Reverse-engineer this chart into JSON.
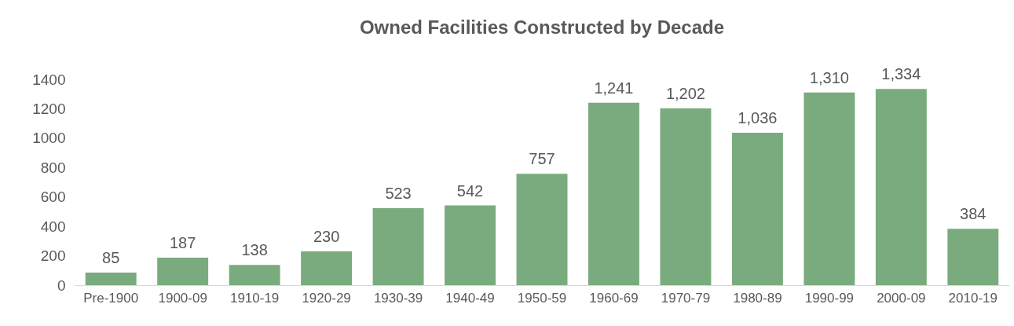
{
  "chart_data": {
    "type": "bar",
    "title": "Owned Facilities Constructed by Decade",
    "categories": [
      "Pre-1900",
      "1900-09",
      "1910-19",
      "1920-29",
      "1930-39",
      "1940-49",
      "1950-59",
      "1960-69",
      "1970-79",
      "1980-89",
      "1990-99",
      "2000-09",
      "2010-19"
    ],
    "values": [
      85,
      187,
      138,
      230,
      523,
      542,
      757,
      1241,
      1202,
      1036,
      1310,
      1334,
      384
    ],
    "value_labels": [
      "85",
      "187",
      "138",
      "230",
      "523",
      "542",
      "757",
      "1,241",
      "1,202",
      "1,036",
      "1,310",
      "1,334",
      "384"
    ],
    "color": "#7aab7e",
    "ylim": [
      0,
      1400
    ],
    "yticks": [
      0,
      200,
      400,
      600,
      800,
      1000,
      1200,
      1400
    ],
    "grid": false
  }
}
